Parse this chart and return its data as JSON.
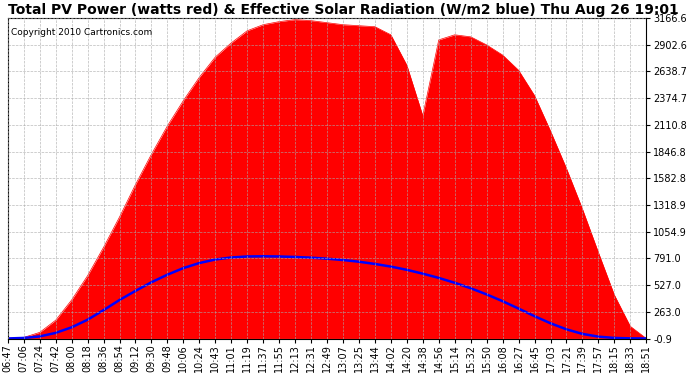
{
  "title": "Total PV Power (watts red) & Effective Solar Radiation (W/m2 blue) Thu Aug 26 19:01",
  "copyright": "Copyright 2010 Cartronics.com",
  "ymin": -0.9,
  "ymax": 3166.6,
  "yticks": [
    3166.6,
    2902.6,
    2638.7,
    2374.7,
    2110.8,
    1846.8,
    1582.8,
    1318.9,
    1054.9,
    791.0,
    527.0,
    263.0,
    -0.9
  ],
  "x_labels": [
    "06:47",
    "07:06",
    "07:24",
    "07:42",
    "08:00",
    "08:18",
    "08:36",
    "08:54",
    "09:12",
    "09:30",
    "09:48",
    "10:06",
    "10:24",
    "10:43",
    "11:01",
    "11:19",
    "11:37",
    "11:55",
    "12:13",
    "12:31",
    "12:49",
    "13:07",
    "13:25",
    "13:44",
    "14:02",
    "14:20",
    "14:38",
    "14:56",
    "15:14",
    "15:32",
    "15:50",
    "16:08",
    "16:27",
    "16:45",
    "17:03",
    "17:21",
    "17:39",
    "17:57",
    "18:15",
    "18:33",
    "18:51"
  ],
  "pv_power": [
    0,
    10,
    60,
    180,
    380,
    620,
    900,
    1200,
    1520,
    1820,
    2100,
    2350,
    2580,
    2780,
    2920,
    3040,
    3100,
    3130,
    3150,
    3140,
    3120,
    3100,
    3090,
    3080,
    3000,
    2700,
    2200,
    2950,
    3000,
    2980,
    2900,
    2800,
    2650,
    2400,
    2050,
    1680,
    1280,
    850,
    430,
    120,
    0
  ],
  "solar_radiation": [
    0,
    5,
    20,
    55,
    110,
    185,
    280,
    380,
    470,
    555,
    630,
    695,
    745,
    780,
    800,
    810,
    812,
    810,
    805,
    798,
    788,
    775,
    758,
    736,
    710,
    678,
    640,
    598,
    550,
    496,
    435,
    368,
    295,
    220,
    150,
    90,
    45,
    18,
    5,
    1,
    0
  ],
  "background_color": "#ffffff",
  "grid_color": "#aaaaaa",
  "fill_color": "#ff0000",
  "line_color_pv": "#ff0000",
  "line_color_solar": "#0000ff",
  "title_fontsize": 10,
  "tick_fontsize": 7,
  "copyright_fontsize": 6.5
}
